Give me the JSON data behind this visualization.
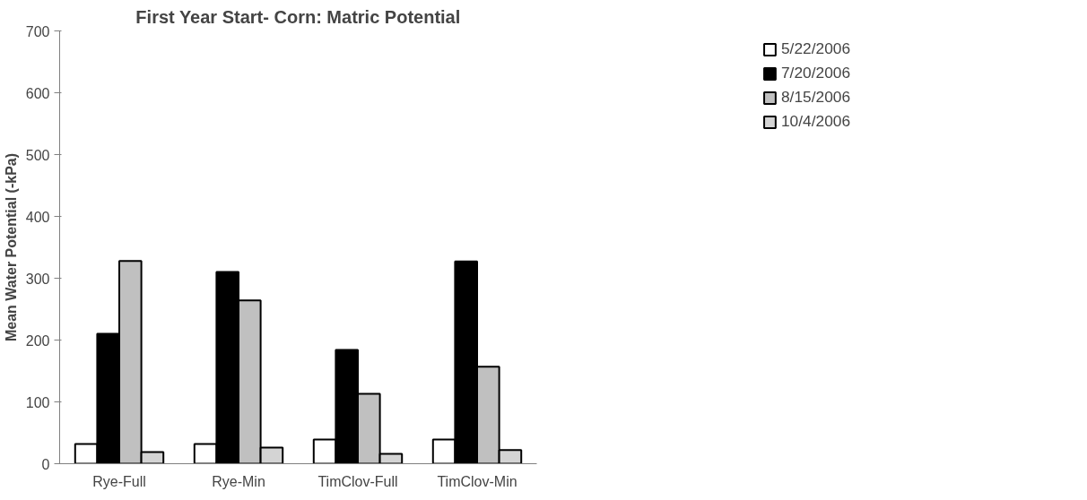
{
  "chart_data": {
    "type": "bar",
    "title": "First Year Start- Corn: Matric Potential",
    "ylabel": "Mean Water Potential (-kPa)",
    "categories": [
      "Rye-Full",
      "Rye-Min",
      "TimClov-Full",
      "TimClov-Min"
    ],
    "series": [
      {
        "name": "5/22/2006",
        "color": "#ffffff",
        "values": [
          32,
          32,
          39,
          39
        ]
      },
      {
        "name": "7/20/2006",
        "color": "#000000",
        "values": [
          210,
          310,
          184,
          327
        ]
      },
      {
        "name": "8/15/2006",
        "color": "#c0c0c0",
        "values": [
          328,
          264,
          113,
          157
        ]
      },
      {
        "name": "10/4/2006",
        "color": "#d4d4d4",
        "values": [
          19,
          26,
          16,
          22
        ]
      }
    ],
    "ylim": [
      0,
      700
    ],
    "yticks": [
      0,
      100,
      200,
      300,
      400,
      500,
      600,
      700
    ],
    "grid": false,
    "legend": "top right"
  }
}
